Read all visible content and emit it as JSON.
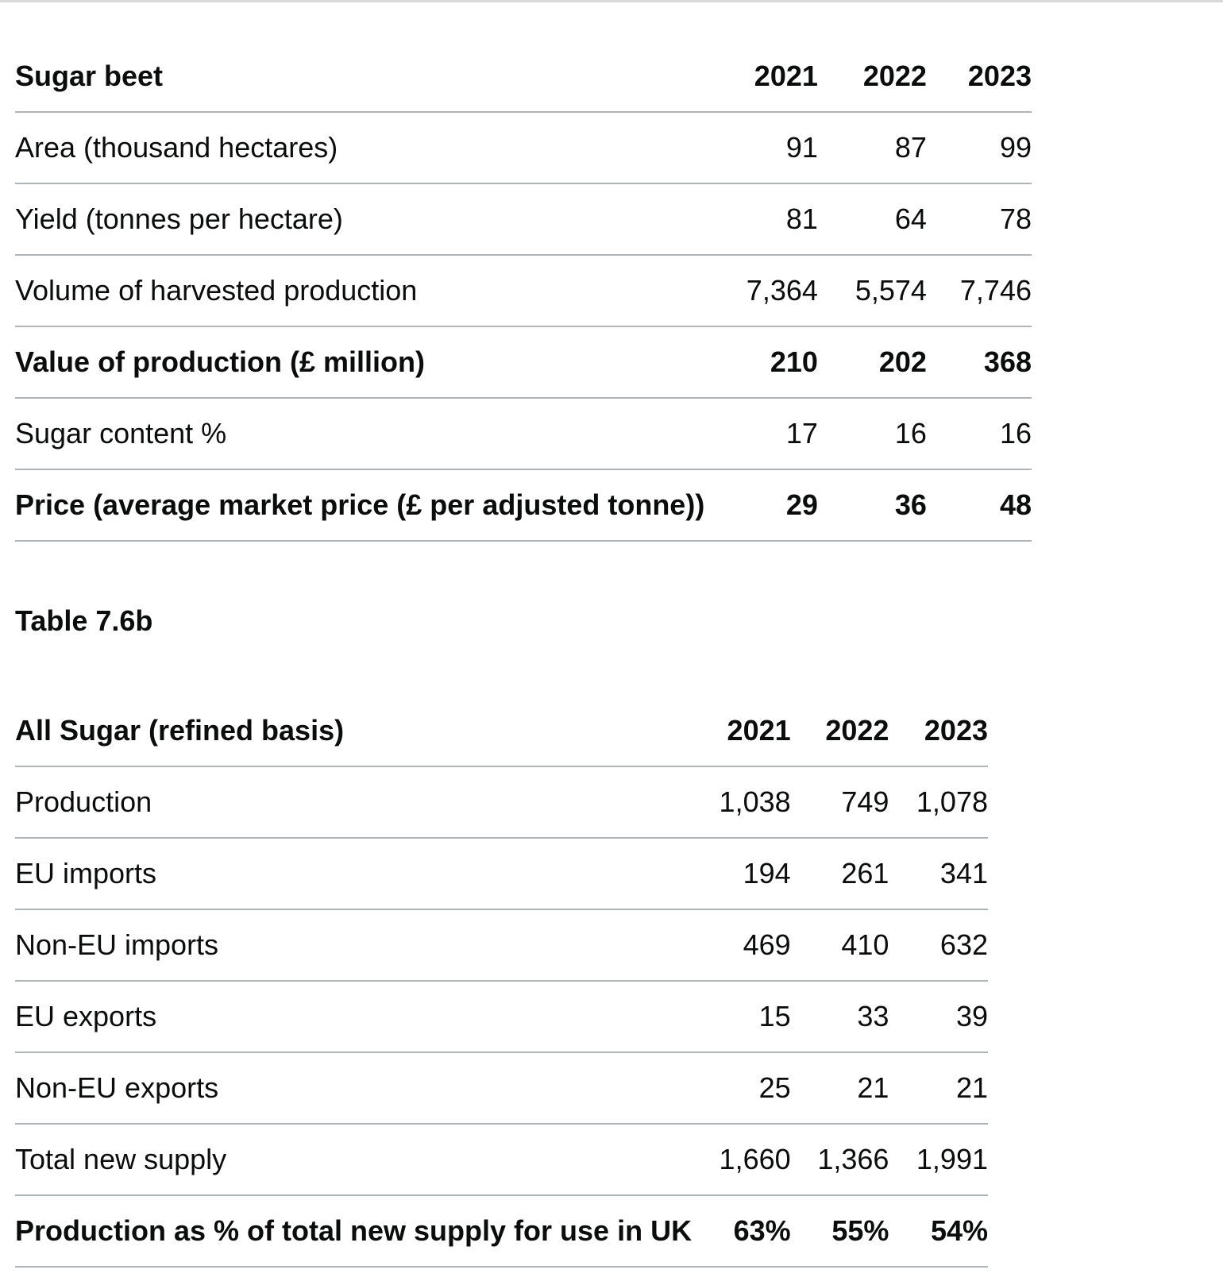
{
  "table_a": {
    "header": [
      "Sugar beet",
      "2021",
      "2022",
      "2023"
    ],
    "rows": [
      {
        "label": "Area (thousand hectares)",
        "values": [
          "91",
          "87",
          "99"
        ],
        "bold": false
      },
      {
        "label": "Yield (tonnes per hectare)",
        "values": [
          "81",
          "64",
          "78"
        ],
        "bold": false
      },
      {
        "label": "Volume of harvested production",
        "values": [
          "7,364",
          "5,574",
          "7,746"
        ],
        "bold": false
      },
      {
        "label": "Value of production (£ million)",
        "values": [
          "210",
          "202",
          "368"
        ],
        "bold": true
      },
      {
        "label": "Sugar content %",
        "values": [
          "17",
          "16",
          "16"
        ],
        "bold": false
      },
      {
        "label": "Price (average market price (£ per adjusted tonne))",
        "values": [
          "29",
          "36",
          "48"
        ],
        "bold": true
      }
    ]
  },
  "table_b_title": "Table 7.6b",
  "table_b": {
    "header": [
      "All Sugar (refined basis)",
      "2021",
      "2022",
      "2023"
    ],
    "rows": [
      {
        "label": "Production",
        "values": [
          "1,038",
          "749",
          "1,078"
        ],
        "bold": false
      },
      {
        "label": "EU imports",
        "values": [
          "194",
          "261",
          "341"
        ],
        "bold": false
      },
      {
        "label": "Non-EU imports",
        "values": [
          "469",
          "410",
          "632"
        ],
        "bold": false
      },
      {
        "label": "EU exports",
        "values": [
          "15",
          "33",
          "39"
        ],
        "bold": false
      },
      {
        "label": "Non-EU exports",
        "values": [
          "25",
          "21",
          "21"
        ],
        "bold": false
      },
      {
        "label": "Total new supply",
        "values": [
          "1,660",
          "1,366",
          "1,991"
        ],
        "bold": false
      },
      {
        "label": "Production as % of total new supply for use in UK",
        "values": [
          "63%",
          "55%",
          "54%"
        ],
        "bold": true
      }
    ]
  }
}
